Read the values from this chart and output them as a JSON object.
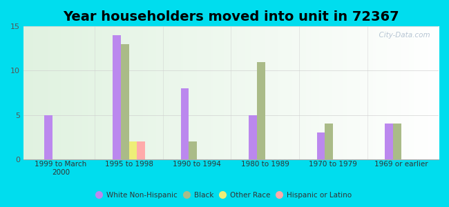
{
  "title": "Year householders moved into unit in 72367",
  "categories": [
    "1999 to March\n2000",
    "1995 to 1998",
    "1990 to 1994",
    "1980 to 1989",
    "1970 to 1979",
    "1969 or earlier"
  ],
  "series": {
    "White Non-Hispanic": [
      5,
      14,
      8,
      5,
      3,
      4
    ],
    "Black": [
      0,
      13,
      2,
      11,
      4,
      4
    ],
    "Other Race": [
      0,
      2,
      0,
      0,
      0,
      0
    ],
    "Hispanic or Latino": [
      0,
      2,
      0,
      0,
      0,
      0
    ]
  },
  "colors": {
    "White Non-Hispanic": "#bb88ee",
    "Black": "#aabb88",
    "Other Race": "#eeee77",
    "Hispanic or Latino": "#ffaaaa"
  },
  "ylim": [
    0,
    15
  ],
  "yticks": [
    0,
    5,
    10,
    15
  ],
  "background_outer": "#00ddee",
  "title_fontsize": 14,
  "bar_width": 0.12,
  "watermark": "  City-Data.com"
}
